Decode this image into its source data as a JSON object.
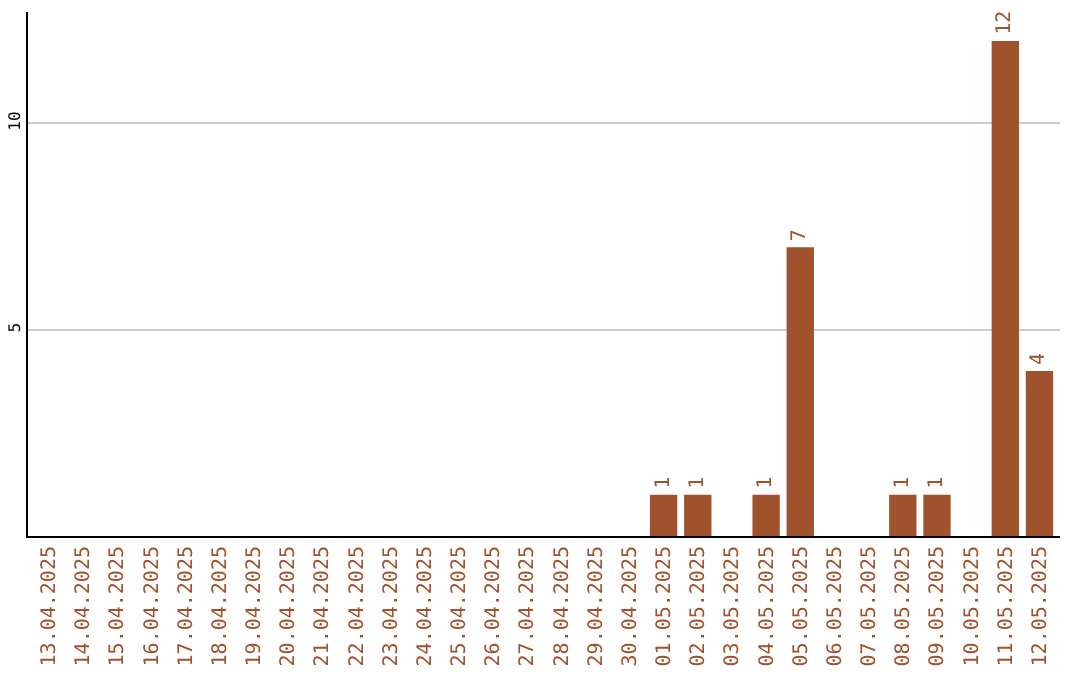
{
  "chart_data": {
    "type": "bar",
    "categories": [
      "13.04.2025",
      "14.04.2025",
      "15.04.2025",
      "16.04.2025",
      "17.04.2025",
      "18.04.2025",
      "19.04.2025",
      "20.04.2025",
      "21.04.2025",
      "22.04.2025",
      "23.04.2025",
      "24.04.2025",
      "25.04.2025",
      "26.04.2025",
      "27.04.2025",
      "28.04.2025",
      "29.04.2025",
      "30.04.2025",
      "01.05.2025",
      "02.05.2025",
      "03.05.2025",
      "04.05.2025",
      "05.05.2025",
      "06.05.2025",
      "07.05.2025",
      "08.05.2025",
      "09.05.2025",
      "10.05.2025",
      "11.05.2025",
      "12.05.2025"
    ],
    "values": [
      0,
      0,
      0,
      0,
      0,
      0,
      0,
      0,
      0,
      0,
      0,
      0,
      0,
      0,
      0,
      0,
      0,
      0,
      1,
      1,
      0,
      1,
      7,
      0,
      0,
      1,
      1,
      0,
      12,
      4
    ],
    "value_labels": [
      null,
      null,
      null,
      null,
      null,
      null,
      null,
      null,
      null,
      null,
      null,
      null,
      null,
      null,
      null,
      null,
      null,
      null,
      "1",
      "1",
      null,
      "1",
      "7",
      null,
      null,
      "1",
      "1",
      null,
      "12",
      "4"
    ],
    "color": "#a0522d",
    "ylim": [
      0,
      12.7
    ],
    "yticks": [
      5,
      10
    ],
    "grid": "y"
  }
}
